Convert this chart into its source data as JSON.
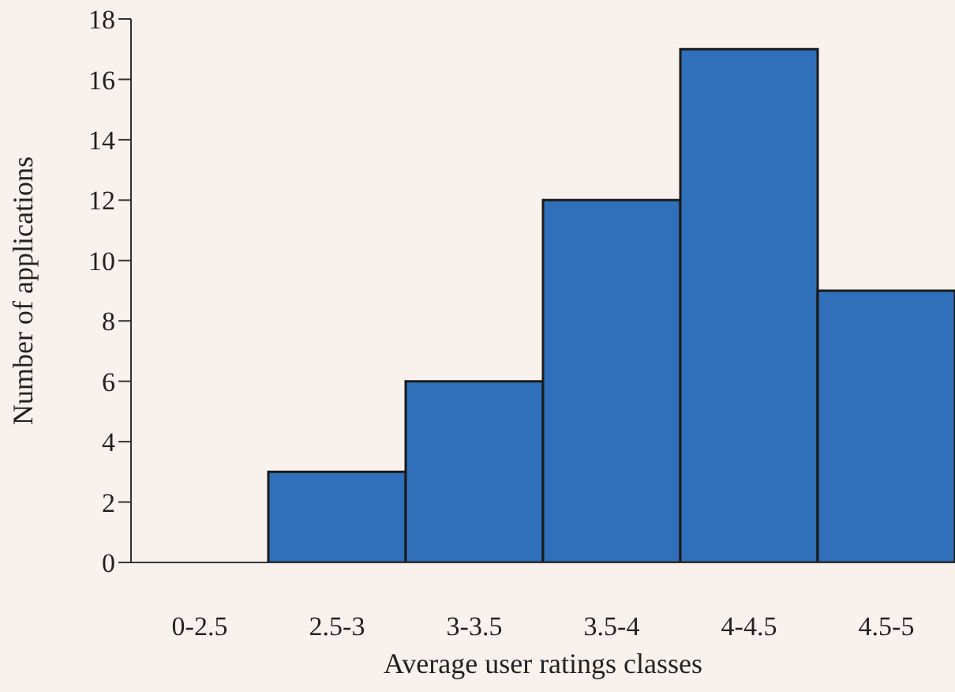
{
  "chart_data": {
    "type": "bar",
    "xlabel": "Average user ratings classes",
    "ylabel": "Number of applications",
    "categories": [
      "0-2.5",
      "2.5-3",
      "3-3.5",
      "3.5-4",
      "4-4.5",
      "4.5-5"
    ],
    "values": [
      0,
      3,
      6,
      12,
      17,
      9
    ],
    "color": "#306fb9",
    "ylim": [
      0,
      18
    ],
    "yticks": [
      0,
      2,
      4,
      6,
      8,
      10,
      12,
      14,
      16,
      18
    ],
    "grid": false,
    "legend": false
  }
}
